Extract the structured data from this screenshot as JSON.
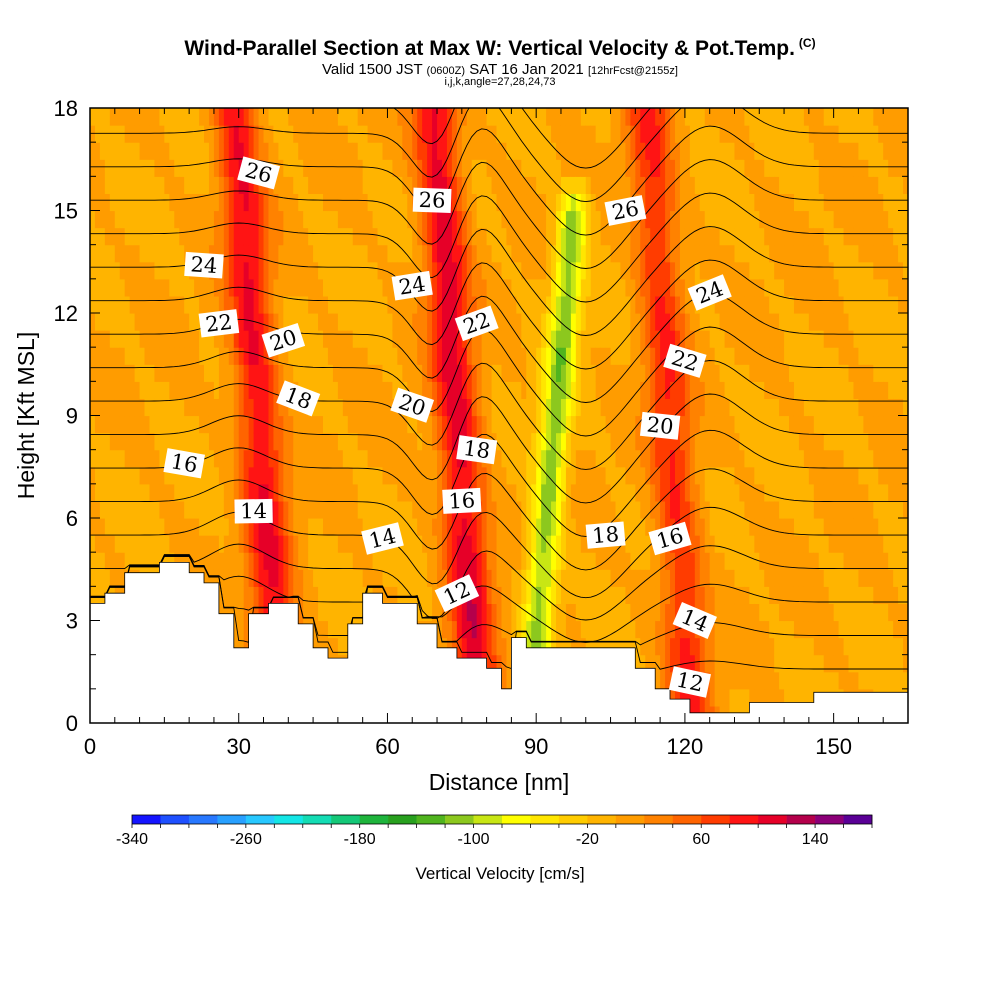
{
  "header": {
    "title": "Wind-Parallel Section at Max W: Vertical Velocity & Pot.Temp.",
    "copyright_mark": "(C)",
    "valid_prefix": "Valid 1500 JST",
    "valid_utc": "(0600Z)",
    "valid_date": "SAT 16 Jan 2021",
    "forecast": "[12hrFcst@2155z]",
    "indices": "i,j,k,angle=27,28,24,73"
  },
  "chart_data": {
    "type": "heatmap",
    "xlabel": "Distance [nm]",
    "ylabel": "Height [Kft MSL]",
    "xlim": [
      0,
      165
    ],
    "ylim": [
      0,
      18
    ],
    "x_ticks": [
      0,
      30,
      60,
      90,
      120,
      150
    ],
    "y_ticks": [
      0,
      3,
      6,
      9,
      12,
      15,
      18
    ],
    "background_level_cm_s": 0,
    "updraft_bands": [
      {
        "x_center": 34,
        "peak_cm_s": 100
      },
      {
        "x_center": 74,
        "peak_cm_s": 110
      },
      {
        "x_center": 117,
        "peak_cm_s": 80
      }
    ],
    "downdraft_bands": [
      {
        "x_center": 94,
        "peak_cm_s": -110
      }
    ],
    "terrain_profile": {
      "x": [
        0,
        3,
        3,
        7,
        7,
        14,
        14,
        20,
        20,
        23,
        23,
        26,
        26,
        29,
        29,
        32,
        32,
        36,
        36,
        42,
        42,
        45,
        45,
        48,
        48,
        52,
        52,
        55,
        55,
        59,
        59,
        66,
        66,
        70,
        70,
        74,
        74,
        80,
        80,
        83,
        83,
        85,
        85,
        88,
        88,
        110,
        110,
        114,
        114,
        117,
        117,
        121,
        121,
        127,
        127,
        133,
        133,
        146,
        146,
        153,
        153,
        165
      ],
      "y": [
        3.5,
        3.5,
        3.8,
        3.8,
        4.4,
        4.4,
        4.7,
        4.7,
        4.4,
        4.4,
        4.1,
        4.1,
        3.2,
        3.2,
        2.2,
        2.2,
        3.2,
        3.2,
        3.5,
        3.5,
        2.9,
        2.9,
        2.2,
        2.2,
        1.9,
        1.9,
        2.9,
        2.9,
        3.8,
        3.8,
        3.5,
        3.5,
        2.9,
        2.9,
        2.2,
        2.2,
        1.9,
        1.9,
        1.6,
        1.6,
        1.0,
        1.0,
        2.5,
        2.5,
        2.2,
        2.2,
        1.6,
        1.6,
        1.0,
        1.0,
        0.7,
        0.7,
        0.3,
        0.3,
        0.3,
        0.3,
        0.6,
        0.6,
        0.9,
        0.9,
        0.9,
        0.9
      ]
    },
    "theta_contours": [
      {
        "label": "12",
        "level": 12,
        "label_x": 74,
        "label_y": 3.8
      },
      {
        "label": "12",
        "level": 12,
        "label_x": 121,
        "label_y": 1.2
      },
      {
        "label": "14",
        "level": 14,
        "label_x": 33,
        "label_y": 6.2
      },
      {
        "label": "14",
        "level": 14,
        "label_x": 59,
        "label_y": 5.4
      },
      {
        "label": "14",
        "level": 14,
        "label_x": 122,
        "label_y": 3.0
      },
      {
        "label": "16",
        "level": 16,
        "label_x": 19,
        "label_y": 7.6
      },
      {
        "label": "16",
        "level": 16,
        "label_x": 75,
        "label_y": 6.5
      },
      {
        "label": "16",
        "level": 16,
        "label_x": 117,
        "label_y": 5.4
      },
      {
        "label": "18",
        "level": 18,
        "label_x": 42,
        "label_y": 9.5
      },
      {
        "label": "18",
        "level": 18,
        "label_x": 78,
        "label_y": 8.0
      },
      {
        "label": "18",
        "level": 18,
        "label_x": 104,
        "label_y": 5.5
      },
      {
        "label": "20",
        "level": 20,
        "label_x": 39,
        "label_y": 11.2
      },
      {
        "label": "20",
        "level": 20,
        "label_x": 65,
        "label_y": 9.3
      },
      {
        "label": "20",
        "level": 20,
        "label_x": 115,
        "label_y": 8.7
      },
      {
        "label": "22",
        "level": 22,
        "label_x": 26,
        "label_y": 11.7
      },
      {
        "label": "22",
        "level": 22,
        "label_x": 78,
        "label_y": 11.7
      },
      {
        "label": "22",
        "level": 22,
        "label_x": 120,
        "label_y": 10.6
      },
      {
        "label": "24",
        "level": 24,
        "label_x": 23,
        "label_y": 13.4
      },
      {
        "label": "24",
        "level": 24,
        "label_x": 65,
        "label_y": 12.8
      },
      {
        "label": "24",
        "level": 24,
        "label_x": 125,
        "label_y": 12.6
      },
      {
        "label": "26",
        "level": 26,
        "label_x": 34,
        "label_y": 16.1
      },
      {
        "label": "26",
        "level": 26,
        "label_x": 69,
        "label_y": 15.3
      },
      {
        "label": "26",
        "level": 26,
        "label_x": 108,
        "label_y": 15.0
      }
    ],
    "colorbar": {
      "title": "Vertical Velocity [cm/s]",
      "min": -340,
      "max": 180,
      "step": 20,
      "tick_labels": [
        "-340",
        "-260",
        "-180",
        "-100",
        "-20",
        "60",
        "140"
      ],
      "tick_values": [
        -340,
        -260,
        -180,
        -100,
        -20,
        60,
        140
      ],
      "colors": [
        "#1414ff",
        "#1e50ff",
        "#2878ff",
        "#28a0ff",
        "#28c8ff",
        "#14e6e6",
        "#14dcb4",
        "#14c878",
        "#1eb43c",
        "#28a01e",
        "#50b41e",
        "#8cc81e",
        "#c8e614",
        "#ffff00",
        "#ffe600",
        "#ffcc00",
        "#ffb400",
        "#ff9c00",
        "#ff8200",
        "#ff6400",
        "#ff3c00",
        "#ff1414",
        "#e60028",
        "#b4004b",
        "#8c0078",
        "#5a0096"
      ]
    }
  }
}
